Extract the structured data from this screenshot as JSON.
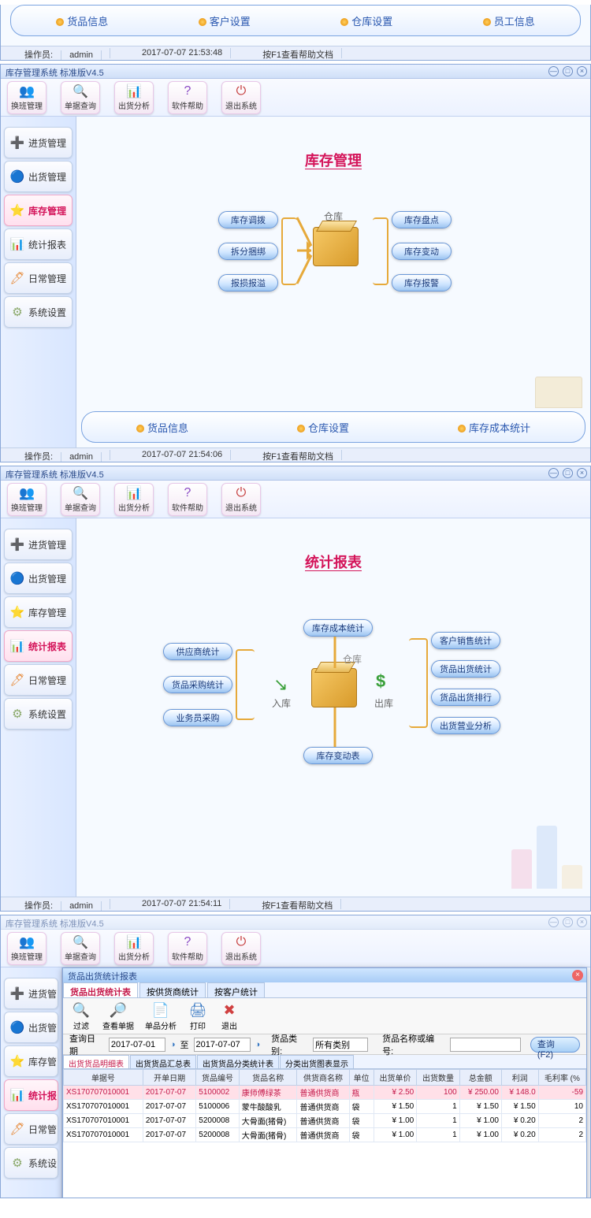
{
  "app_title": "库存管理系统 标准版V4.5",
  "window_controls": {
    "min": "—",
    "max": "□",
    "close": "×"
  },
  "toolbar": [
    {
      "id": "shift",
      "label": "换班管理",
      "icon": "👥",
      "color": "#d4406a"
    },
    {
      "id": "query",
      "label": "单据查询",
      "icon": "🔍",
      "color": "#c43a8a"
    },
    {
      "id": "ship",
      "label": "出货分析",
      "icon": "📊",
      "color": "#c43a6a"
    },
    {
      "id": "help",
      "label": "软件帮助",
      "icon": "?",
      "color": "#8a4ac4"
    },
    {
      "id": "exit",
      "label": "退出系统",
      "icon": "⏻",
      "color": "#c43a3a"
    }
  ],
  "sidebar": [
    {
      "id": "purchase",
      "label": "进货管理",
      "icon": "➕",
      "color": "#4ac46a"
    },
    {
      "id": "ship",
      "label": "出货管理",
      "icon": "🔵",
      "color": "#3a8ac4"
    },
    {
      "id": "stock",
      "label": "库存管理",
      "icon": "⭐",
      "color": "#f6c948"
    },
    {
      "id": "report",
      "label": "统计报表",
      "icon": "📊",
      "color": "#6a8ae6"
    },
    {
      "id": "daily",
      "label": "日常管理",
      "icon": "🖊",
      "color": "#e68a3a"
    },
    {
      "id": "settings",
      "label": "系统设置",
      "icon": "⚙",
      "color": "#8aa86a"
    }
  ],
  "top_links": {
    "a": "货品信息",
    "b": "客户设置",
    "c": "仓库设置",
    "d": "员工信息"
  },
  "status": {
    "operator_label": "操作员:",
    "operator": "admin",
    "help": "按F1查看帮助文档"
  },
  "win1": {
    "title": "库存管理",
    "timestamp": "2017-07-07 21:53:48",
    "box_label": "仓库",
    "left_pills": [
      "库存调拨",
      "拆分捆绑",
      "报损报溢"
    ],
    "right_pills": [
      "库存盘点",
      "库存变动",
      "库存报警"
    ],
    "bottom_links": [
      "货品信息",
      "仓库设置",
      "库存成本统计"
    ]
  },
  "win2": {
    "title": "统计报表",
    "timestamp": "2017-07-07 21:54:06",
    "box_label": "仓库",
    "in_label": "入库",
    "out_label": "出库",
    "left_pills": [
      "供应商统计",
      "货品采购统计",
      "业务员采购"
    ],
    "top_pill": "库存成本统计",
    "bottom_pill": "库存变动表",
    "right_pills": [
      "客户销售统计",
      "货品出货统计",
      "货品出货排行",
      "出货营业分析"
    ],
    "timestamp2": "2017-07-07 21:54:11"
  },
  "win3": {
    "dlg_title": "货品出货统计报表",
    "tabs": [
      "货品出货统计表",
      "按供货商统计",
      "按客户统计"
    ],
    "dlg_toolbar": [
      {
        "id": "filter",
        "label": "过滤",
        "icon": "🔍"
      },
      {
        "id": "view",
        "label": "查看单据",
        "icon": "🔎"
      },
      {
        "id": "single",
        "label": "单品分析",
        "icon": "📄"
      },
      {
        "id": "print",
        "label": "打印",
        "icon": "🖨"
      },
      {
        "id": "exit",
        "label": "退出",
        "icon": "✖"
      }
    ],
    "filter": {
      "date_label": "查询日期",
      "from": "2017-07-01",
      "to_label": "至",
      "to": "2017-07-07",
      "cat_label": "货品类别:",
      "cat_value": "所有类别",
      "name_label": "货品名称或编号:",
      "name_value": "",
      "query_btn": "查询 (F2)"
    },
    "subtabs": [
      "出货货品明细表",
      "出货货品汇总表",
      "出货货品分类统计表",
      "分类出货图表显示"
    ],
    "columns": [
      "单据号",
      "开单日期",
      "货品编号",
      "货品名称",
      "供货商名称",
      "单位",
      "出货单价",
      "出货数量",
      "总金额",
      "利润",
      "毛利率 (%"
    ],
    "rows": [
      {
        "sel": true,
        "c": [
          "XS170707010001",
          "2017-07-07",
          "5100002",
          "康师傅绿茶",
          "普通供货商",
          "瓶",
          "¥ 2.50",
          "100",
          "¥ 250.00",
          "¥ 148.0",
          "-59"
        ]
      },
      {
        "sel": false,
        "c": [
          "XS170707010001",
          "2017-07-07",
          "5100006",
          "蒙牛酸酸乳",
          "普通供货商",
          "袋",
          "¥ 1.50",
          "1",
          "¥ 1.50",
          "¥ 1.50",
          "10"
        ]
      },
      {
        "sel": false,
        "c": [
          "XS170707010001",
          "2017-07-07",
          "5200008",
          "大骨面(猪骨)",
          "普通供货商",
          "袋",
          "¥ 1.00",
          "1",
          "¥ 1.00",
          "¥ 0.20",
          "2"
        ]
      },
      {
        "sel": false,
        "c": [
          "XS170707010001",
          "2017-07-07",
          "5200008",
          "大骨面(猪骨)",
          "普通供货商",
          "袋",
          "¥ 1.00",
          "1",
          "¥ 1.00",
          "¥ 0.20",
          "2"
        ]
      }
    ]
  },
  "colors": {
    "accent": "#d4145a",
    "pill_border": "#6a98d8",
    "orange": "#e6a93a"
  }
}
